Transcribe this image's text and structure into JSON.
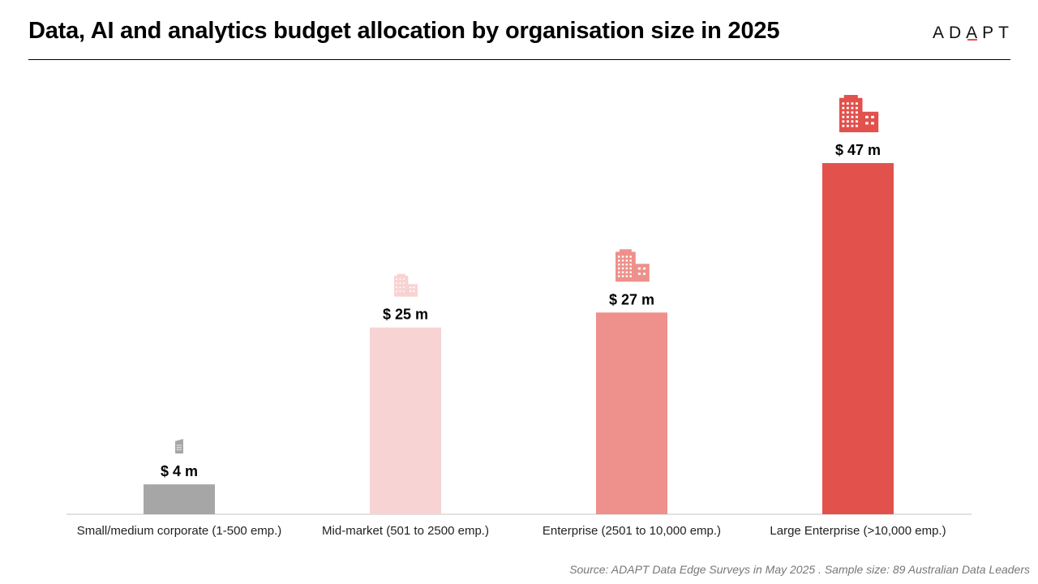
{
  "header": {
    "title": "Data, AI and analytics budget allocation by organisation size in 2025",
    "logo_text": "ADAPT"
  },
  "footer": {
    "source": "Source: ADAPT Data Edge Surveys in May 2025 . Sample size: 89 Australian Data Leaders"
  },
  "chart_data": {
    "type": "bar",
    "title": "Data, AI and analytics budget allocation by organisation size in 2025",
    "xlabel": "",
    "ylabel": "",
    "ylim": [
      0,
      52
    ],
    "grid": false,
    "categories": [
      "Small/medium corporate (1-500 emp.)",
      "Mid-market (501 to 2500 emp.)",
      "Enterprise (2501 to 10,000 emp.)",
      "Large Enterprise (>10,000 emp.)"
    ],
    "values": [
      4,
      25,
      27,
      47
    ],
    "data_labels": [
      "$ 4 m",
      "$ 25 m",
      "$ 27 m",
      "$ 47 m"
    ],
    "colors": [
      "#a6a6a6",
      "#f8d3d3",
      "#ee908b",
      "#e2514c"
    ],
    "icons": [
      "small-office-building-icon",
      "mid-office-building-icon",
      "enterprise-building-icon",
      "large-enterprise-building-icon"
    ],
    "axis_color": "#d9d9d9"
  }
}
